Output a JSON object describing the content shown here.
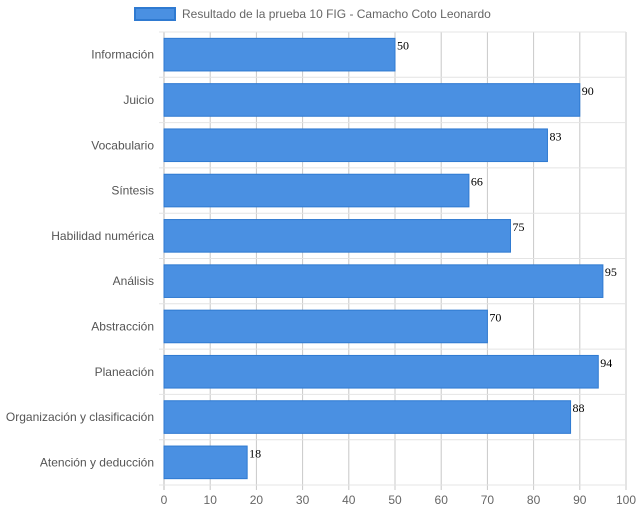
{
  "chart_data": {
    "type": "bar",
    "orientation": "horizontal",
    "categories": [
      "Información",
      "Juicio",
      "Vocabulario",
      "Síntesis",
      "Habilidad numérica",
      "Análisis",
      "Abstracción",
      "Planeación",
      "Organización y clasificación",
      "Atención y deducción"
    ],
    "series": [
      {
        "name": "Resultado de la prueba 10 FIG - Camacho Coto Leonardo",
        "values": [
          50,
          90,
          83,
          66,
          75,
          95,
          70,
          94,
          88,
          18
        ],
        "color": "#4a90e2",
        "border_color": "#2f7ad1"
      }
    ],
    "xlim": [
      0,
      100
    ],
    "x_ticks": [
      0,
      10,
      20,
      30,
      40,
      50,
      60,
      70,
      80,
      90,
      100
    ],
    "grid": true,
    "legend_position": "top",
    "data_labels": true
  }
}
